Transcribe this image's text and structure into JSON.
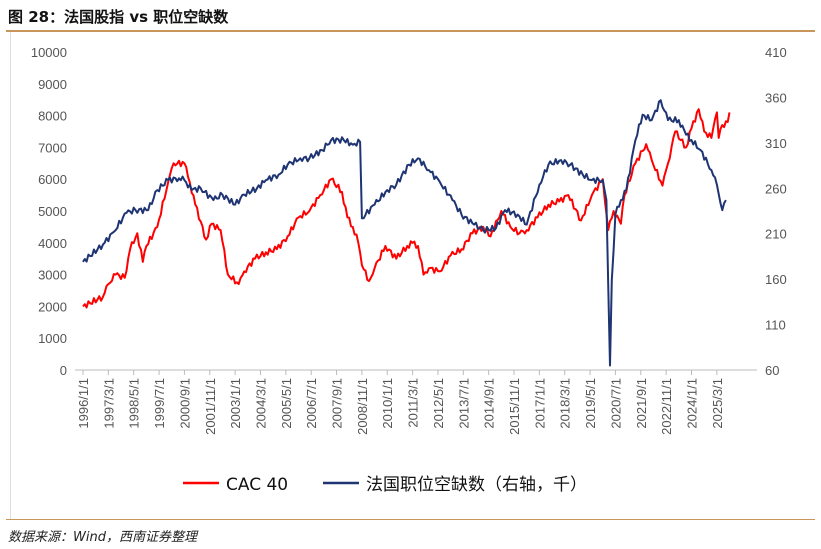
{
  "title": "图 28：法国股指 vs 职位空缺数",
  "source": "数据来源：Wind，西南证券整理",
  "chart_data": {
    "type": "line",
    "title": "",
    "left_axis": {
      "ylim": [
        0,
        10000
      ],
      "ticks": [
        "0",
        "1000",
        "2000",
        "3000",
        "4000",
        "5000",
        "6000",
        "7000",
        "8000",
        "9000",
        "10000"
      ]
    },
    "right_axis": {
      "ylim": [
        60,
        410
      ],
      "ticks": [
        "60",
        "110",
        "160",
        "210",
        "260",
        "310",
        "360",
        "410"
      ]
    },
    "x_ticks": [
      "1996/1/1",
      "1997/3/1",
      "1998/5/1",
      "1999/7/1",
      "2000/9/1",
      "2001/11/1",
      "2003/1/1",
      "2004/3/1",
      "2005/5/1",
      "2006/7/1",
      "2007/9/1",
      "2008/11/1",
      "2010/1/1",
      "2011/3/1",
      "2012/5/1",
      "2013/7/1",
      "2014/9/1",
      "2015/11/1",
      "2017/1/1",
      "2018/3/1",
      "2019/5/1",
      "2020/7/1",
      "2021/9/1",
      "2022/11/1",
      "2024/1/1",
      "2025/3/1"
    ],
    "grid": false,
    "legend_position": "bottom",
    "series": [
      {
        "name": "CAC 40",
        "axis": "left",
        "color": "#ff0000",
        "points": [
          [
            "1996/1",
            2000
          ],
          [
            "1996/12",
            2300
          ],
          [
            "1997/3",
            2700
          ],
          [
            "1997/7",
            3000
          ],
          [
            "1997/12",
            2900
          ],
          [
            "1998/3",
            3800
          ],
          [
            "1998/7",
            4300
          ],
          [
            "1998/10",
            3400
          ],
          [
            "1998/12",
            3900
          ],
          [
            "1999/6",
            4500
          ],
          [
            "1999/12",
            5900
          ],
          [
            "2000/3",
            6500
          ],
          [
            "2000/9",
            6500
          ],
          [
            "2000/12",
            5900
          ],
          [
            "2001/3",
            5200
          ],
          [
            "2001/9",
            4100
          ],
          [
            "2001/12",
            4600
          ],
          [
            "2002/5",
            4400
          ],
          [
            "2002/9",
            3000
          ],
          [
            "2003/3",
            2700
          ],
          [
            "2003/6",
            3100
          ],
          [
            "2003/12",
            3500
          ],
          [
            "2004/6",
            3700
          ],
          [
            "2004/12",
            3800
          ],
          [
            "2005/6",
            4200
          ],
          [
            "2005/12",
            4800
          ],
          [
            "2006/6",
            5000
          ],
          [
            "2006/12",
            5500
          ],
          [
            "2007/6",
            6000
          ],
          [
            "2007/12",
            5600
          ],
          [
            "2008/3",
            4800
          ],
          [
            "2008/6",
            4500
          ],
          [
            "2008/9",
            4000
          ],
          [
            "2008/11",
            3300
          ],
          [
            "2009/3",
            2800
          ],
          [
            "2009/6",
            3200
          ],
          [
            "2009/12",
            3900
          ],
          [
            "2010/6",
            3500
          ],
          [
            "2010/12",
            3900
          ],
          [
            "2011/3",
            4000
          ],
          [
            "2011/6",
            3900
          ],
          [
            "2011/9",
            3000
          ],
          [
            "2011/12",
            3200
          ],
          [
            "2012/6",
            3100
          ],
          [
            "2012/12",
            3600
          ],
          [
            "2013/6",
            3800
          ],
          [
            "2013/12",
            4300
          ],
          [
            "2014/6",
            4500
          ],
          [
            "2014/10",
            4200
          ],
          [
            "2015/4",
            5000
          ],
          [
            "2015/9",
            4500
          ],
          [
            "2016/2",
            4300
          ],
          [
            "2016/6",
            4400
          ],
          [
            "2016/12",
            4800
          ],
          [
            "2017/6",
            5200
          ],
          [
            "2017/12",
            5300
          ],
          [
            "2018/5",
            5500
          ],
          [
            "2018/12",
            4700
          ],
          [
            "2019/6",
            5500
          ],
          [
            "2019/12",
            6000
          ],
          [
            "2020/3",
            4400
          ],
          [
            "2020/6",
            5000
          ],
          [
            "2020/10",
            4600
          ],
          [
            "2020/12",
            5500
          ],
          [
            "2021/6",
            6500
          ],
          [
            "2021/12",
            7100
          ],
          [
            "2022/3",
            6600
          ],
          [
            "2022/9",
            5800
          ],
          [
            "2022/12",
            6500
          ],
          [
            "2023/4",
            7500
          ],
          [
            "2023/10",
            7000
          ],
          [
            "2024/1",
            7600
          ],
          [
            "2024/5",
            8200
          ],
          [
            "2024/8",
            7500
          ],
          [
            "2024/12",
            7300
          ],
          [
            "2025/3",
            8100
          ],
          [
            "2025/4",
            7300
          ],
          [
            "2025/6",
            7700
          ],
          [
            "2025/9",
            7800
          ],
          [
            "2025/10",
            8100
          ]
        ]
      },
      {
        "name": "法国职位空缺数（右轴，千）",
        "axis": "right",
        "color": "#1f3472",
        "points": [
          [
            "1996/1",
            179
          ],
          [
            "1996/12",
            198
          ],
          [
            "1997/6",
            212
          ],
          [
            "1998/1",
            233
          ],
          [
            "1998/6",
            236
          ],
          [
            "1999/1",
            236
          ],
          [
            "1999/6",
            258
          ],
          [
            "1999/12",
            269
          ],
          [
            "2000/6",
            271
          ],
          [
            "2000/9",
            269
          ],
          [
            "2001/1",
            258
          ],
          [
            "2001/6",
            260
          ],
          [
            "2002/1",
            247
          ],
          [
            "2002/6",
            253
          ],
          [
            "2003/1",
            242
          ],
          [
            "2003/6",
            253
          ],
          [
            "2004/1",
            260
          ],
          [
            "2004/6",
            269
          ],
          [
            "2005/1",
            275
          ],
          [
            "2005/6",
            286
          ],
          [
            "2006/1",
            293
          ],
          [
            "2006/6",
            293
          ],
          [
            "2007/1",
            302
          ],
          [
            "2007/6",
            313
          ],
          [
            "2008/1",
            313
          ],
          [
            "2008/6",
            308
          ],
          [
            "2008/10",
            311
          ],
          [
            "2008/11",
            227
          ],
          [
            "2009/6",
            242
          ],
          [
            "2010/1",
            258
          ],
          [
            "2010/6",
            264
          ],
          [
            "2011/1",
            286
          ],
          [
            "2011/6",
            293
          ],
          [
            "2011/12",
            280
          ],
          [
            "2012/6",
            267
          ],
          [
            "2013/1",
            247
          ],
          [
            "2013/6",
            231
          ],
          [
            "2014/1",
            220
          ],
          [
            "2014/6",
            214
          ],
          [
            "2015/1",
            216
          ],
          [
            "2015/6",
            236
          ],
          [
            "2016/1",
            231
          ],
          [
            "2016/6",
            220
          ],
          [
            "2017/1",
            264
          ],
          [
            "2017/6",
            286
          ],
          [
            "2018/1",
            291
          ],
          [
            "2018/6",
            286
          ],
          [
            "2019/1",
            275
          ],
          [
            "2019/6",
            269
          ],
          [
            "2019/12",
            269
          ],
          [
            "2020/2",
            247
          ],
          [
            "2020/4",
            65
          ],
          [
            "2020/5",
            159
          ],
          [
            "2020/7",
            231
          ],
          [
            "2020/10",
            247
          ],
          [
            "2021/1",
            258
          ],
          [
            "2021/6",
            313
          ],
          [
            "2021/10",
            341
          ],
          [
            "2022/3",
            335
          ],
          [
            "2022/8",
            357
          ],
          [
            "2022/12",
            335
          ],
          [
            "2023/6",
            335
          ],
          [
            "2023/10",
            319
          ],
          [
            "2024/1",
            313
          ],
          [
            "2024/6",
            302
          ],
          [
            "2024/12",
            280
          ],
          [
            "2025/3",
            264
          ],
          [
            "2025/6",
            236
          ],
          [
            "2025/8",
            247
          ]
        ]
      }
    ]
  }
}
